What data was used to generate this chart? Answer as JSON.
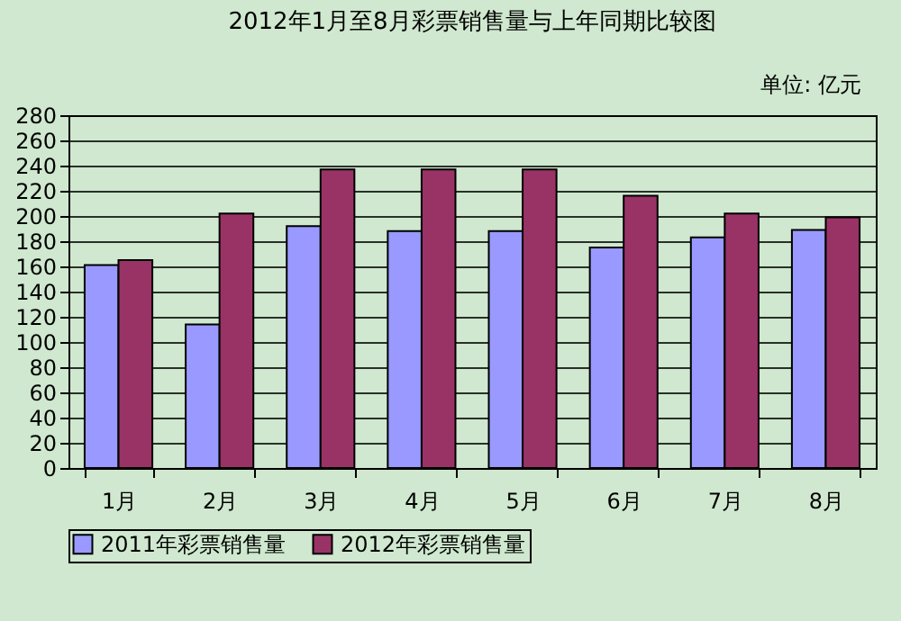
{
  "chart_data": {
    "type": "bar",
    "title": "2012年1月至8月彩票销售量与上年同期比较图",
    "annotations": [
      "单位: 亿元"
    ],
    "categories": [
      "1月",
      "2月",
      "3月",
      "4月",
      "5月",
      "6月",
      "7月",
      "8月"
    ],
    "series": [
      {
        "name": "2011年彩票销售量",
        "color": "#9999ff",
        "values": [
          161,
          114,
          192,
          188,
          188,
          175,
          183,
          189
        ]
      },
      {
        "name": "2012年彩票销售量",
        "color": "#993366",
        "values": [
          165,
          202,
          237,
          237,
          237,
          216,
          202,
          199
        ]
      }
    ],
    "ylim": [
      0,
      280
    ],
    "yticks": [
      0,
      20,
      40,
      60,
      80,
      100,
      120,
      140,
      160,
      180,
      200,
      220,
      240,
      260,
      280
    ],
    "grid": "y",
    "legend": "bottom"
  }
}
